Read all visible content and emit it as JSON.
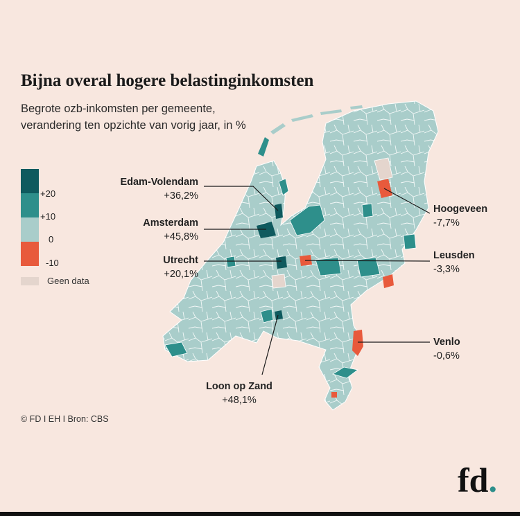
{
  "title": "Bijna overal hogere belastinginkomsten",
  "subtitle": "Begrote ozb-inkomsten per gemeente, verandering ten opzichte van vorig jaar, in %",
  "legend": {
    "ticks": [
      "+20",
      "+10",
      "0",
      "-10"
    ],
    "nodata_label": "Geen data",
    "colors": {
      "gt20": "#0f5a5e",
      "10to20": "#2e8f8b",
      "0to10": "#a9cdca",
      "lt0": "#e85a3c",
      "nodata": "#e4d5cd"
    }
  },
  "callouts": {
    "edam": {
      "name": "Edam-Volendam",
      "value": "+36,2%"
    },
    "amsterdam": {
      "name": "Amsterdam",
      "value": "+45,8%"
    },
    "utrecht": {
      "name": "Utrecht",
      "value": "+20,1%"
    },
    "loon": {
      "name": "Loon op Zand",
      "value": "+48,1%"
    },
    "hoogeveen": {
      "name": "Hoogeveen",
      "value": "-7,7%"
    },
    "leusden": {
      "name": "Leusden",
      "value": "-3,3%"
    },
    "venlo": {
      "name": "Venlo",
      "value": "-0,6%"
    }
  },
  "source": "© FD I EH I Bron: CBS",
  "logo": {
    "text": "fd",
    "dot": "."
  }
}
